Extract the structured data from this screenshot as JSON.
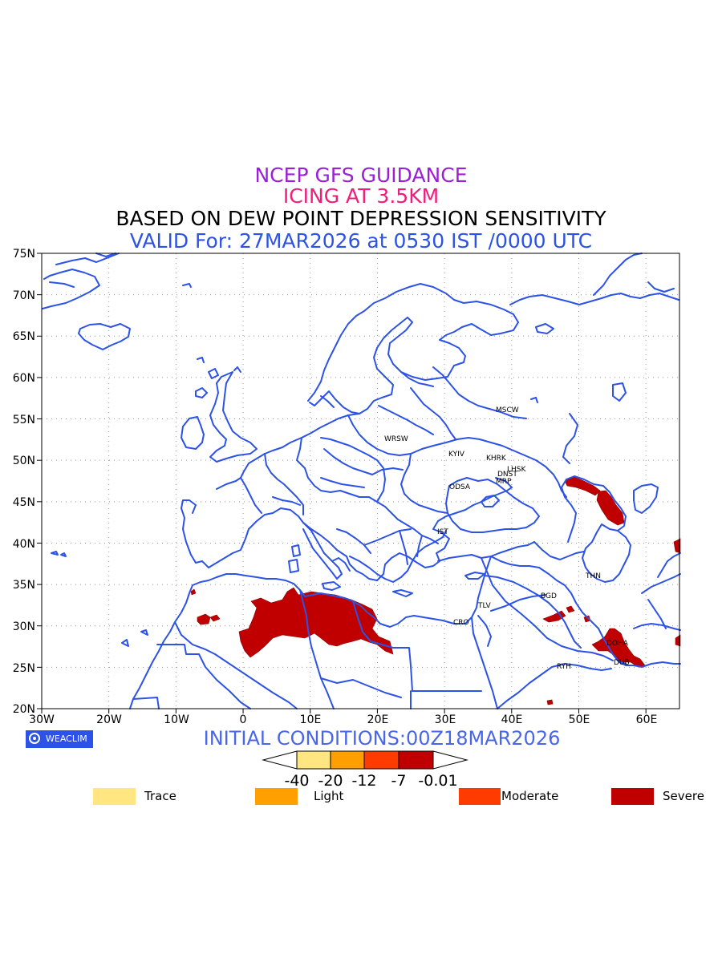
{
  "titles": {
    "line1": "NCEP GFS GUIDANCE",
    "line2": "ICING AT 3.5KM",
    "line3": "BASED ON DEW POINT DEPRESSION SENSITIVITY",
    "line4": "VALID For: 27MAR2026 at 0530 IST /0000 UTC"
  },
  "colors": {
    "title1": "#9b1fd6",
    "title2": "#ee1c7a",
    "title3": "#000000",
    "title4": "#2d52e6",
    "coast": "#2d52e6",
    "severe": "#c00000"
  },
  "map": {
    "lon_range": [
      -30,
      65
    ],
    "lat_range": [
      20,
      75
    ],
    "lat_labels": [
      "75N",
      "70N",
      "65N",
      "60N",
      "55N",
      "50N",
      "45N",
      "40N",
      "35N",
      "30N",
      "25N",
      "20N"
    ],
    "lon_labels": [
      "30W",
      "20W",
      "10W",
      "0",
      "10E",
      "20E",
      "30E",
      "40E",
      "50E",
      "60E"
    ],
    "grid": "dotted",
    "cities": [
      "MSCW",
      "WRSW",
      "KYIV",
      "KHRK",
      "LHSK",
      "DNST",
      "MRP",
      "ODSA",
      "IST",
      "THN",
      "BGD",
      "TLV",
      "CRO",
      "RYH",
      "DOHA",
      "DUB"
    ]
  },
  "badge": {
    "label": "WEACLIM",
    "icon": "weaclim-logo-icon"
  },
  "initial_conditions": "INITIAL CONDITIONS:00Z18MAR2026",
  "colorbar": {
    "labels": [
      "-40",
      "-20",
      "-12",
      "-7",
      "-0.01"
    ],
    "colors": [
      "#ffe680",
      "#ff9f00",
      "#ff3b00",
      "#c00000"
    ]
  },
  "legend": [
    {
      "label": "Trace",
      "color": "#ffe680"
    },
    {
      "label": "Light",
      "color": "#ff9f00"
    },
    {
      "label": "Moderate",
      "color": "#ff3b00"
    },
    {
      "label": "Severe",
      "color": "#c00000"
    }
  ]
}
